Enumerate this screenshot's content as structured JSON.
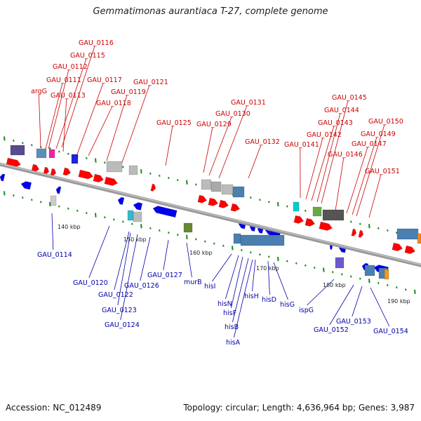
{
  "title": "Gemmatimonas aurantiaca T-27, complete genome",
  "footer": {
    "accession": "Accession: NC_012489",
    "topology": "Topology: circular; Length: 4,636,964 bp; Genes: 3,987"
  },
  "colors": {
    "forward": "#ff0000",
    "reverse": "#0000ee",
    "backbone": "#888888",
    "tick_marks": "#1a8a1a",
    "label_forward": "#cc0000",
    "label_reverse": "#0000aa"
  },
  "scale_labels": [
    "140 kbp",
    "150 kbp",
    "160 kbp",
    "170 kbp",
    "180 kbp",
    "190 kbp"
  ],
  "forward_labels": [
    "GAU_0116",
    "GAU_0115",
    "GAU_0112",
    "GAU_0111",
    "argG",
    "GAU_0113",
    "GAU_0117",
    "GAU_0119",
    "GAU_0118",
    "GAU_0121",
    "GAU_0125",
    "GAU_0131",
    "GAU_0130",
    "GAU_0129",
    "GAU_0132",
    "GAU_0145",
    "GAU_0144",
    "GAU_0143",
    "GAU_0142",
    "GAU_0141",
    "GAU_0150",
    "GAU_0149",
    "GAU_0147",
    "GAU_0146",
    "GAU_0151"
  ],
  "reverse_labels": [
    "GAU_0114",
    "GAU_0120",
    "GAU_0122",
    "GAU_0126",
    "GAU_0127",
    "GAU_0123",
    "GAU_0124",
    "murB",
    "hisI",
    "hisN",
    "hisF",
    "hisB",
    "hisA",
    "hisH",
    "hisD",
    "hisG",
    "ispG",
    "GAU_0152",
    "GAU_0153",
    "GAU_0154"
  ]
}
